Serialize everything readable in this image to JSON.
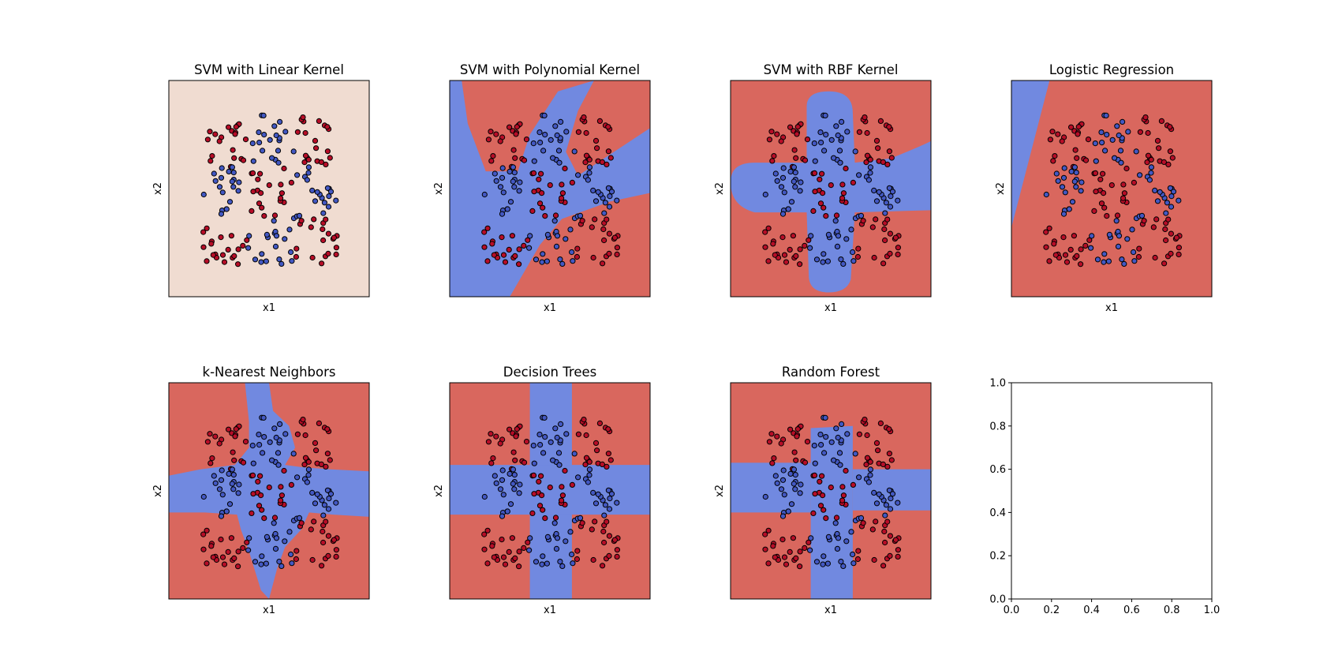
{
  "figure": {
    "background": "#ffffff"
  },
  "colors": {
    "blue_region": "#7189e0",
    "red_region": "#d9675e",
    "linear_region": "#f0dcd1",
    "red_point": "#b70d27",
    "blue_point": "#4358c3",
    "point_edge": "#000000",
    "axes_edge": "#000000"
  },
  "points": {
    "red_label": "class 1",
    "blue_label": "class 0",
    "rule": "XOR-like checkerboard of 3x3 blocks: points whose column and row group parity differ are blue"
  },
  "chart_data": [
    {
      "type": "scatter",
      "title": "SVM with Linear Kernel",
      "xlabel": "x1",
      "ylabel": "x2",
      "decision_regions": "uniform",
      "region_color": "linear_region"
    },
    {
      "type": "scatter",
      "title": "SVM with Polynomial Kernel",
      "xlabel": "x1",
      "ylabel": "x2",
      "decision_regions": "polynomial"
    },
    {
      "type": "scatter",
      "title": "SVM with RBF Kernel",
      "xlabel": "x1",
      "ylabel": "x2",
      "decision_regions": "rbf"
    },
    {
      "type": "scatter",
      "title": "Logistic Regression",
      "xlabel": "x1",
      "ylabel": "x2",
      "decision_regions": "logistic"
    },
    {
      "type": "scatter",
      "title": "k-Nearest Neighbors",
      "xlabel": "x1",
      "ylabel": "x2",
      "decision_regions": "knn"
    },
    {
      "type": "scatter",
      "title": "Decision Trees",
      "xlabel": "x1",
      "ylabel": "x2",
      "decision_regions": "tree"
    },
    {
      "type": "scatter",
      "title": "Random Forest",
      "xlabel": "x1",
      "ylabel": "x2",
      "decision_regions": "forest"
    },
    {
      "type": "empty",
      "title": "",
      "xlim": [
        0.0,
        1.0
      ],
      "ylim": [
        0.0,
        1.0
      ],
      "xticks": [
        "0.0",
        "0.2",
        "0.4",
        "0.6",
        "0.8",
        "1.0"
      ],
      "yticks": [
        "0.0",
        "0.2",
        "0.4",
        "0.6",
        "0.8",
        "1.0"
      ]
    }
  ]
}
